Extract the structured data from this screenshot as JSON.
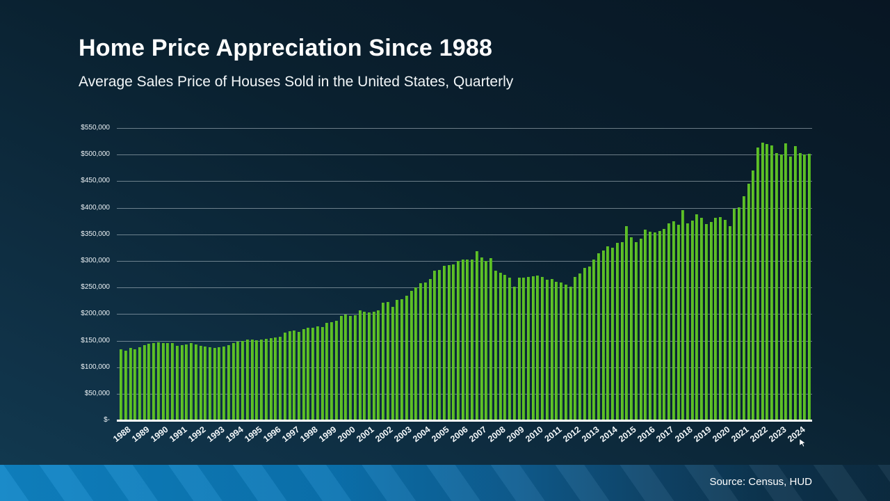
{
  "header": {
    "title": "Home Price Appreciation Since 1988",
    "subtitle": "Average Sales Price of Houses Sold in the United States, Quarterly"
  },
  "footer": {
    "source_label": "Source: Census, HUD"
  },
  "colors": {
    "bar_green": "#53b821",
    "background_navy": "#0a2130",
    "footer_blue": "#0f85c6",
    "gridline_gray": "#becbd2",
    "text_white": "#ffffff"
  },
  "chart_data": {
    "type": "bar",
    "title": "Home Price Appreciation Since 1988",
    "subtitle": "Average Sales Price of Houses Sold in the United States, Quarterly",
    "unit": "USD",
    "frequency": "quarterly",
    "start_period": "1988 Q1",
    "end_period": "2024 Q4",
    "ylim": [
      0,
      550000
    ],
    "grid": "horizontal",
    "legend": "none",
    "y_tick_labels": [
      "$550,000",
      "$500,000",
      "$450,000",
      "$400,000",
      "$350,000",
      "$300,000",
      "$250,000",
      "$200,000",
      "$150,000",
      "$100,000",
      "$50,000",
      "$-"
    ],
    "y_tick_values": [
      550000,
      500000,
      450000,
      400000,
      350000,
      300000,
      250000,
      200000,
      150000,
      100000,
      50000,
      0
    ],
    "x_tick_labels": [
      "1988",
      "1989",
      "1990",
      "1991",
      "1992",
      "1993",
      "1994",
      "1995",
      "1996",
      "1997",
      "1998",
      "1999",
      "2000",
      "2001",
      "2002",
      "2003",
      "2004",
      "2005",
      "2006",
      "2007",
      "2008",
      "2009",
      "2010",
      "2011",
      "2012",
      "2013",
      "2014",
      "2015",
      "2016",
      "2017",
      "2018",
      "2019",
      "2020",
      "2021",
      "2022",
      "2023",
      "2024"
    ],
    "series": [
      {
        "name": "Average Sales Price of Houses Sold",
        "values": [
          133000,
          130500,
          136500,
          134000,
          137500,
          141000,
          144500,
          146000,
          146500,
          145000,
          145000,
          146000,
          140500,
          142000,
          143000,
          146000,
          143000,
          140500,
          138500,
          137500,
          136500,
          138000,
          139500,
          142000,
          146000,
          148500,
          150000,
          151500,
          152500,
          151000,
          152000,
          153500,
          155000,
          156500,
          157500,
          164500,
          167500,
          169500,
          167000,
          171000,
          174000,
          174500,
          177000,
          175500,
          183000,
          184500,
          187000,
          197000,
          199000,
          196000,
          197500,
          207000,
          204000,
          203000,
          204500,
          207500,
          222000,
          222500,
          213500,
          226000,
          228500,
          235000,
          243000,
          250500,
          257500,
          259500,
          265500,
          282000,
          283500,
          290500,
          292000,
          293500,
          300500,
          302000,
          303000,
          303000,
          318000,
          307000,
          300000,
          305000,
          282000,
          278000,
          274000,
          268000,
          252000,
          268000,
          268000,
          270000,
          271000,
          273000,
          270000,
          264000,
          266000,
          261000,
          259000,
          255000,
          252000,
          270000,
          277000,
          287000,
          289000,
          303000,
          315000,
          320000,
          327000,
          325000,
          334000,
          335000,
          366000,
          344000,
          335000,
          342000,
          359000,
          355000,
          353000,
          356000,
          360000,
          371000,
          374500,
          368500,
          396000,
          371000,
          376000,
          388000,
          381000,
          370000,
          373500,
          381000,
          383000,
          377000,
          366000,
          398000,
          401000,
          422000,
          445000,
          470000,
          514000,
          523000,
          520000,
          517000,
          503000,
          500000,
          521000,
          497000,
          516000,
          503000,
          500000,
          501000
        ]
      }
    ]
  }
}
